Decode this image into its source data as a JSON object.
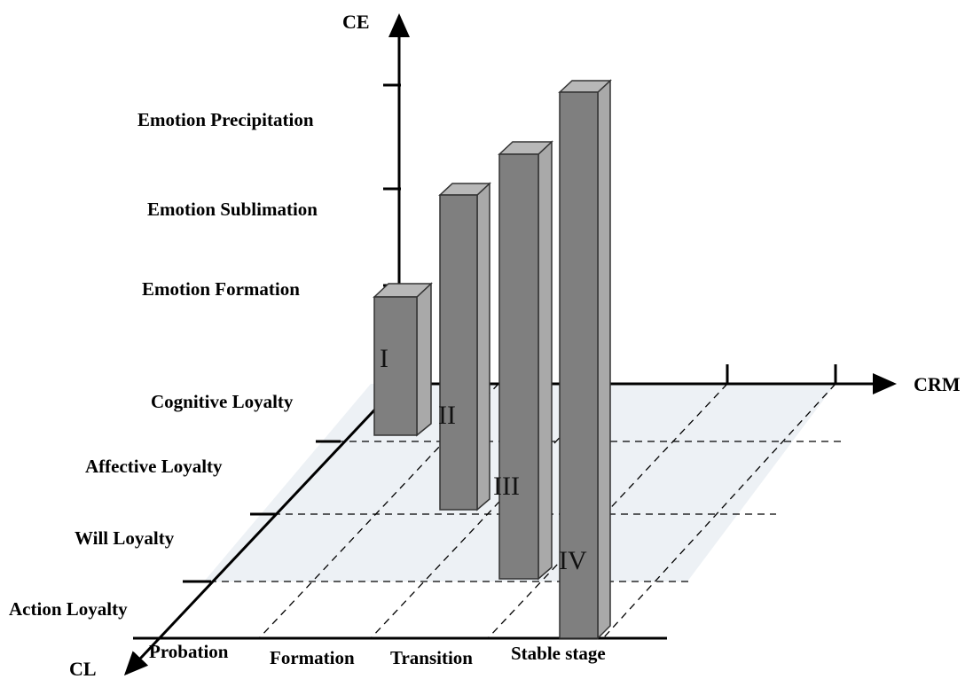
{
  "axes": {
    "vertical": "CE",
    "horizontal": "CRM",
    "depth": "CL"
  },
  "ce_levels": [
    "Emotion Formation",
    "Emotion Sublimation",
    "Emotion Precipitation"
  ],
  "cl_levels": [
    "Cognitive Loyalty",
    "Affective Loyalty",
    "Will Loyalty",
    "Action Loyalty"
  ],
  "crm_stages": [
    "Probation",
    "Formation",
    "Transition",
    "Stable stage"
  ],
  "bars": [
    {
      "label": "I"
    },
    {
      "label": "II"
    },
    {
      "label": "III"
    },
    {
      "label": "IV"
    }
  ],
  "colors": {
    "bar_front": "#7f7f7f",
    "bar_side": "#a9a9a9",
    "bar_top": "#b8b8b8",
    "plane": "#edf1f5"
  }
}
